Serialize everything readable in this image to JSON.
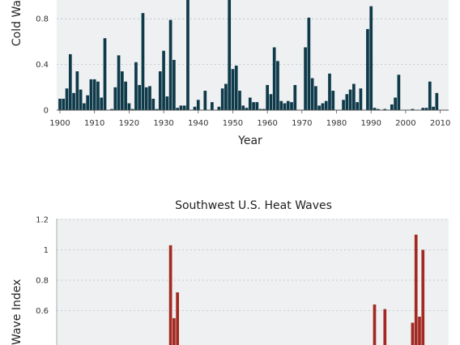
{
  "chart_data": [
    {
      "type": "bar",
      "title": "",
      "xlabel": "Year",
      "ylabel": "Cold Wa",
      "ylim": [
        0,
        1.0
      ],
      "yticks": [
        0,
        0.4,
        0.8
      ],
      "xticks": [
        1900,
        1910,
        1920,
        1930,
        1940,
        1950,
        1960,
        1970,
        1980,
        1990,
        2000,
        2010
      ],
      "grid": true,
      "bar_color": "#0f3a4a",
      "x": [
        1900,
        1901,
        1902,
        1903,
        1904,
        1905,
        1906,
        1907,
        1908,
        1909,
        1910,
        1911,
        1912,
        1913,
        1914,
        1915,
        1916,
        1917,
        1918,
        1919,
        1920,
        1921,
        1922,
        1923,
        1924,
        1925,
        1926,
        1927,
        1928,
        1929,
        1930,
        1931,
        1932,
        1933,
        1934,
        1935,
        1936,
        1937,
        1938,
        1939,
        1940,
        1941,
        1942,
        1943,
        1944,
        1945,
        1946,
        1947,
        1948,
        1949,
        1950,
        1951,
        1952,
        1953,
        1954,
        1955,
        1956,
        1957,
        1958,
        1959,
        1960,
        1961,
        1962,
        1963,
        1964,
        1965,
        1966,
        1967,
        1968,
        1969,
        1970,
        1971,
        1972,
        1973,
        1974,
        1975,
        1976,
        1977,
        1978,
        1979,
        1980,
        1981,
        1982,
        1983,
        1984,
        1985,
        1986,
        1987,
        1988,
        1989,
        1990,
        1991,
        1992,
        1993,
        1994,
        1995,
        1996,
        1997,
        1998,
        1999,
        2000,
        2001,
        2002,
        2003,
        2004,
        2005,
        2006,
        2007,
        2008,
        2009,
        2010,
        2011
      ],
      "values": [
        0.1,
        0.1,
        0.19,
        0.49,
        0.15,
        0.34,
        0.18,
        0.06,
        0.13,
        0.27,
        0.27,
        0.25,
        0.11,
        0.63,
        0.0,
        0.01,
        0.2,
        0.48,
        0.34,
        0.25,
        0.06,
        0.01,
        0.42,
        0.22,
        0.85,
        0.2,
        0.21,
        0.1,
        0.01,
        0.34,
        0.52,
        0.12,
        0.79,
        0.44,
        0.02,
        0.04,
        0.04,
        1.0,
        0.0,
        0.03,
        0.09,
        0.0,
        0.17,
        0.0,
        0.07,
        0.0,
        0.03,
        0.19,
        0.23,
        1.0,
        0.36,
        0.39,
        0.17,
        0.04,
        0.02,
        0.11,
        0.07,
        0.07,
        0.01,
        0.01,
        0.22,
        0.14,
        0.55,
        0.43,
        0.08,
        0.06,
        0.08,
        0.07,
        0.22,
        0.0,
        0.0,
        0.55,
        0.81,
        0.28,
        0.21,
        0.04,
        0.06,
        0.08,
        0.32,
        0.17,
        0.0,
        0.0,
        0.09,
        0.14,
        0.18,
        0.23,
        0.07,
        0.19,
        0.0,
        0.71,
        0.91,
        0.02,
        0.01,
        0.0,
        0.01,
        0.0,
        0.05,
        0.11,
        0.31,
        0.0,
        0.0,
        0.0,
        0.01,
        0.0,
        0.0,
        0.02,
        0.02,
        0.25,
        0.03,
        0.15,
        0.0,
        0.0
      ]
    },
    {
      "type": "bar",
      "title": "Southwest U.S. Heat Waves",
      "xlabel": "",
      "ylabel": "Wave Index",
      "ylim": [
        0,
        1.2
      ],
      "yticks": [
        0.6,
        0.8,
        1,
        1.2
      ],
      "ytick_labels": [
        "0.6",
        "0.8",
        "1",
        "1.2"
      ],
      "grid": true,
      "bar_color": "#a32a22",
      "x": [
        1931,
        1932,
        1933,
        1934,
        1990,
        1991,
        1992,
        1993,
        1994,
        1995,
        2002,
        2003,
        2004,
        2005,
        2006
      ],
      "values": [
        0.0,
        1.03,
        0.55,
        0.72,
        0.0,
        0.64,
        0.0,
        0.0,
        0.61,
        0.0,
        0.52,
        1.1,
        0.56,
        1.0,
        0.0
      ]
    }
  ]
}
